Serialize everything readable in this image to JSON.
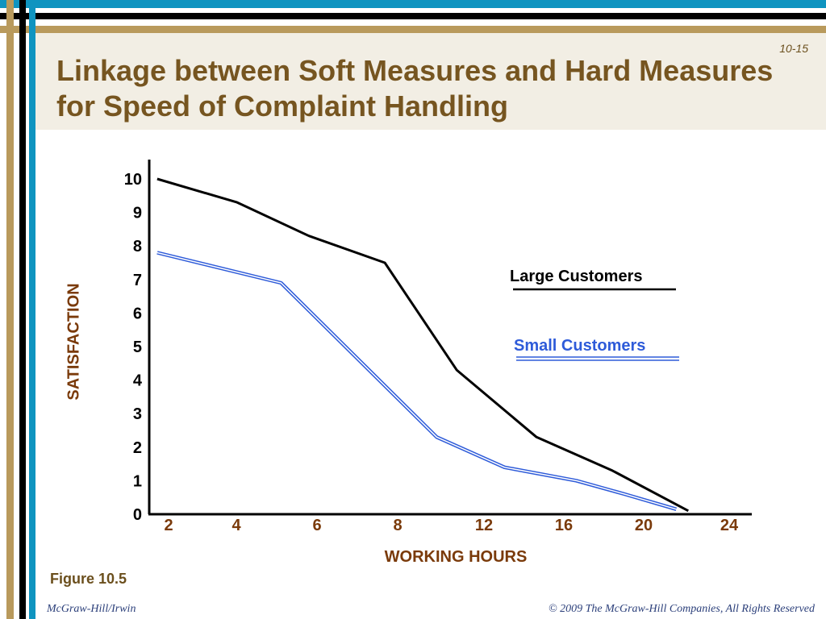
{
  "slide": {
    "number": "10-15",
    "title": "Linkage between Soft Measures and Hard Measures for Speed of Complaint Handling",
    "figure_label": "Figure 10.5",
    "footer_left": "McGraw-Hill/Irwin",
    "footer_right": "© 2009 The McGraw-Hill Companies, All Rights Reserved"
  },
  "colors": {
    "title": "#765520",
    "axis_title": "#7a3a0a",
    "large_series": "#000000",
    "small_series": "#2e5bd9",
    "stripe_blue": "#0f94c0",
    "stripe_tan": "#b99a5c"
  },
  "chart_data": {
    "type": "line",
    "xlabel": "WORKING HOURS",
    "ylabel": "SATISFACTION",
    "x_ticks": [
      "2",
      "4",
      "6",
      "8",
      "12",
      "16",
      "20",
      "24"
    ],
    "y_ticks": [
      "0",
      "1",
      "2",
      "3",
      "4",
      "5",
      "6",
      "7",
      "8",
      "9",
      "10"
    ],
    "ylim": [
      0,
      10
    ],
    "grid": false,
    "legend_position": "right",
    "series": [
      {
        "name": "Large Customers",
        "style": "single-black",
        "points": [
          [
            0.2,
            10
          ],
          [
            2.2,
            9.3
          ],
          [
            4.0,
            8.3
          ],
          [
            5.9,
            7.5
          ],
          [
            7.7,
            4.3
          ],
          [
            9.7,
            2.3
          ],
          [
            11.6,
            1.3
          ],
          [
            13.5,
            0.1
          ]
        ]
      },
      {
        "name": "Small Customers",
        "style": "double-blue",
        "points": [
          [
            0.2,
            7.8
          ],
          [
            3.3,
            6.9
          ],
          [
            7.2,
            2.3
          ],
          [
            8.9,
            1.4
          ],
          [
            10.7,
            1.0
          ],
          [
            11.9,
            0.6
          ],
          [
            13.2,
            0.15
          ]
        ]
      }
    ]
  }
}
